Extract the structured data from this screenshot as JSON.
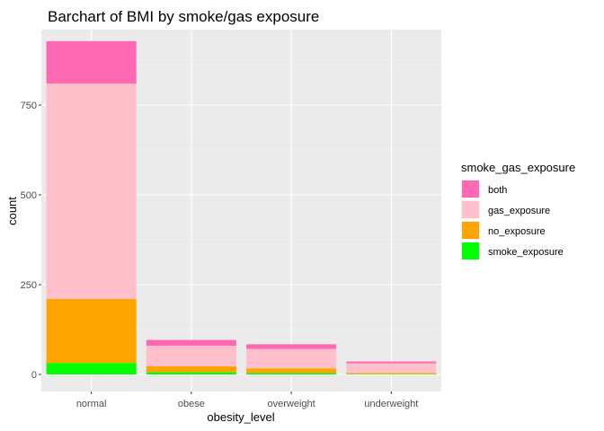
{
  "chart_data": {
    "type": "bar",
    "stacked": true,
    "title": "Barchart of BMI by smoke/gas exposure",
    "xlabel": "obesity_level",
    "ylabel": "count",
    "categories": [
      "normal",
      "obese",
      "overweight",
      "underweight"
    ],
    "ylim": [
      0,
      930
    ],
    "yticks": [
      0,
      250,
      500,
      750
    ],
    "ytick_labels": [
      "0",
      "250",
      "500",
      "750"
    ],
    "grid": true,
    "panel_background": "#ebebeb",
    "legend": {
      "title": "smoke_gas_exposure",
      "position": "right"
    },
    "series": [
      {
        "name": "smoke_exposure",
        "color": "#00ff00",
        "values": [
          32,
          6,
          4,
          1
        ]
      },
      {
        "name": "no_exposure",
        "color": "#ffa500",
        "values": [
          178,
          17,
          13,
          3
        ]
      },
      {
        "name": "gas_exposure",
        "color": "#ffc0cb",
        "values": [
          600,
          57,
          54,
          27
        ]
      },
      {
        "name": "both",
        "color": "#ff69b4",
        "values": [
          118,
          16,
          13,
          5
        ]
      }
    ]
  }
}
